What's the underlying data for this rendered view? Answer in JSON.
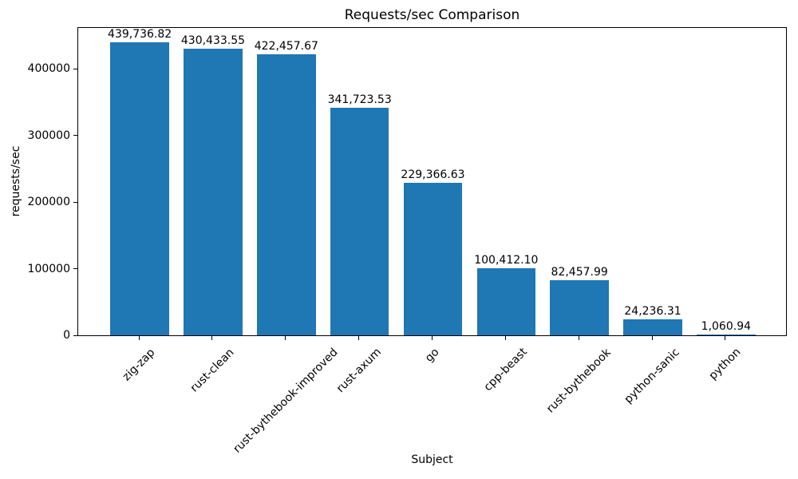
{
  "chart_data": {
    "type": "bar",
    "title": "Requests/sec Comparison",
    "xlabel": "Subject",
    "ylabel": "requests/sec",
    "categories": [
      "zig-zap",
      "rust-clean",
      "rust-bythebook-improved",
      "rust-axum",
      "go",
      "cpp-beast",
      "rust-bythebook",
      "python-sanic",
      "python"
    ],
    "values": [
      439736.82,
      430433.55,
      422457.67,
      341723.53,
      229366.63,
      100412.1,
      82457.99,
      24236.31,
      1060.94
    ],
    "bar_labels": [
      "439,736.82",
      "430,433.55",
      "422,457.67",
      "341,723.53",
      "229,366.63",
      "100,412.10",
      "82,457.99",
      "24,236.31",
      "1,060.94"
    ],
    "yticks": [
      0,
      100000,
      200000,
      300000,
      400000
    ],
    "ylim": [
      0,
      461724
    ],
    "xtick_rotation_deg": 45,
    "bar_color": "#1f77b4",
    "axis_color": "#000000",
    "background_color": "#ffffff",
    "grid": false,
    "legend_position": "none"
  }
}
